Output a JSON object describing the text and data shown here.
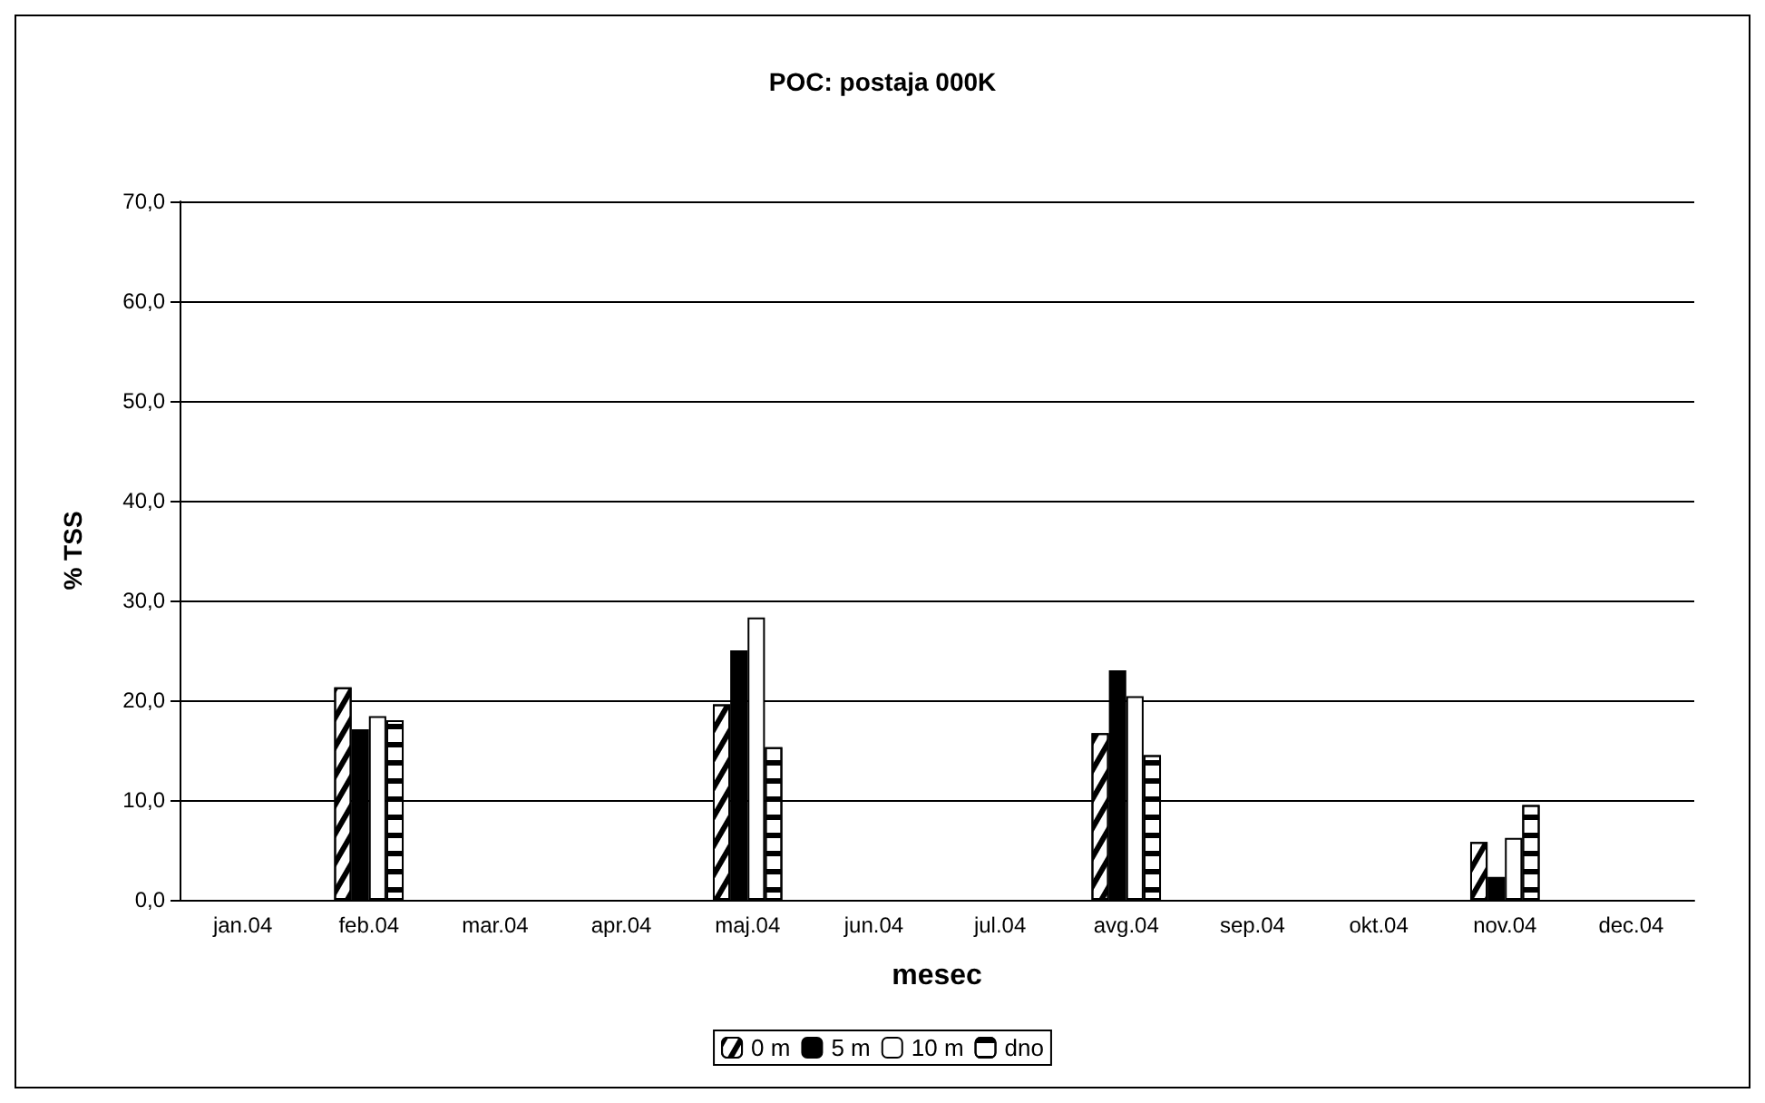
{
  "chart_data": {
    "type": "bar",
    "title": "POC: postaja 000K",
    "xlabel": "mesec",
    "ylabel": "% TSS",
    "categories": [
      "jan.04",
      "feb.04",
      "mar.04",
      "apr.04",
      "maj.04",
      "jun.04",
      "jul.04",
      "avg.04",
      "sep.04",
      "okt.04",
      "nov.04",
      "dec.04"
    ],
    "series": [
      {
        "name": "0 m",
        "color": "#ffffff",
        "values": [
          null,
          21.3,
          null,
          null,
          19.6,
          null,
          null,
          16.7,
          null,
          null,
          5.8,
          null
        ]
      },
      {
        "name": "5 m",
        "color": "#000000",
        "values": [
          null,
          17.1,
          null,
          null,
          25.0,
          null,
          null,
          23.0,
          null,
          null,
          2.3,
          null
        ]
      },
      {
        "name": "10 m",
        "color": "#ffffff",
        "values": [
          null,
          18.4,
          null,
          null,
          28.3,
          null,
          null,
          20.4,
          null,
          null,
          6.2,
          null
        ]
      },
      {
        "name": "dno",
        "color": "#ffffff",
        "values": [
          null,
          18.0,
          null,
          null,
          15.3,
          null,
          null,
          14.5,
          null,
          null,
          9.5,
          null
        ]
      }
    ],
    "ylim": [
      0,
      70
    ],
    "yticks": [
      {
        "value": 0,
        "label": "0,0"
      },
      {
        "value": 10,
        "label": "10,0"
      },
      {
        "value": 20,
        "label": "20,0"
      },
      {
        "value": 30,
        "label": "30,0"
      },
      {
        "value": 40,
        "label": "40,0"
      },
      {
        "value": 50,
        "label": "50,0"
      },
      {
        "value": 60,
        "label": "60,0"
      },
      {
        "value": 70,
        "label": "70,0"
      }
    ],
    "grid": "y",
    "legend": "bottom"
  }
}
